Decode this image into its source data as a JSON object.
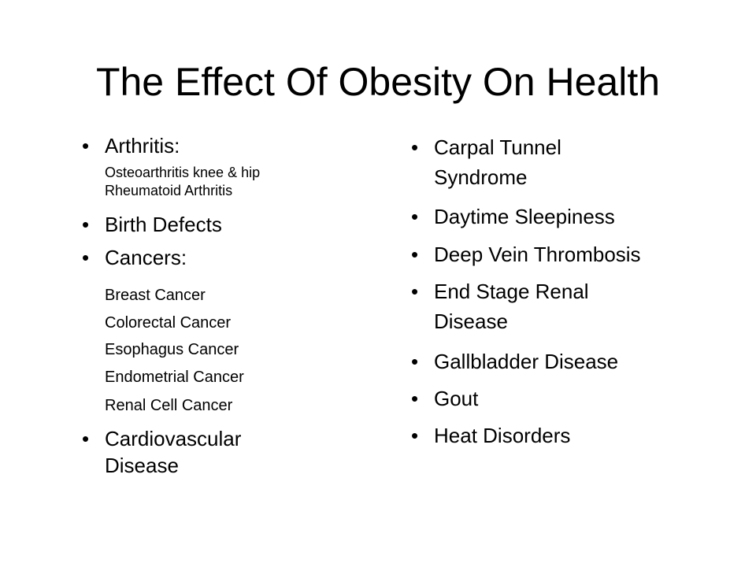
{
  "title": "The Effect Of Obesity On Health",
  "left_column": [
    {
      "text": "Arthritis:",
      "subitems": [
        "Osteoarthritis knee & hip",
        "Rheumatoid Arthritis"
      ]
    },
    {
      "text": "Birth Defects"
    },
    {
      "text": "Cancers:",
      "subitems": [
        "Breast Cancer",
        "Colorectal Cancer",
        "Esophagus Cancer",
        "Endometrial Cancer",
        "Renal Cell Cancer"
      ]
    },
    {
      "text": "Cardiovascular Disease"
    }
  ],
  "right_column": [
    "Carpal Tunnel Syndrome",
    "Daytime Sleepiness",
    "Deep Vein Thrombosis",
    "End Stage Renal Disease",
    "Gallbladder Disease",
    "Gout",
    "Heat Disorders"
  ]
}
